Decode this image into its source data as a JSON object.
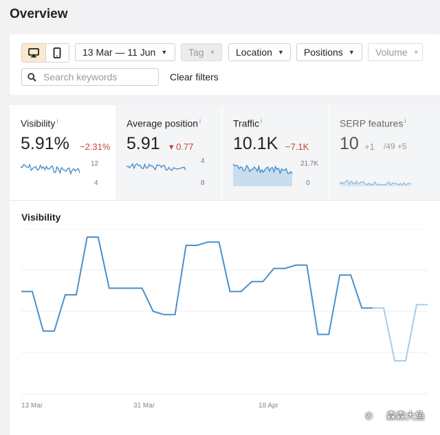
{
  "page": {
    "title": "Overview"
  },
  "filters": {
    "device_desktop_icon": "desktop-icon",
    "device_mobile_icon": "mobile-icon",
    "date_range": "13 Mar — 11 Jun",
    "tag": "Tag",
    "location": "Location",
    "positions": "Positions",
    "volume": "Volume",
    "search_placeholder": "Search keywords",
    "clear_filters": "Clear filters"
  },
  "metrics": [
    {
      "label": "Visibility",
      "info": "i",
      "value": "5.91%",
      "change": "−2.31%",
      "axis_top": "12",
      "axis_bottom": "4"
    },
    {
      "label": "Average position",
      "info": "i",
      "value": "5.91",
      "change": "▾ 0.77",
      "axis_top": "4",
      "axis_bottom": "8"
    },
    {
      "label": "Traffic",
      "info": "i",
      "value": "10.1K",
      "change": "−7.1K",
      "axis_top": "21.7K",
      "axis_bottom": "0"
    },
    {
      "label": "SERP features",
      "info": "i",
      "value": "10",
      "change": "+1",
      "extra": "/49 +5"
    }
  ],
  "chart_title": "Visibility",
  "colors": {
    "accent": "#4a8fc8",
    "negative": "#c44536",
    "active_segment": "#fbe9cf"
  },
  "chart_data": {
    "type": "line",
    "title": "Visibility",
    "x_tick_labels": [
      "13 Mar",
      "31 Mar",
      "18 Apr"
    ],
    "series": [
      {
        "values": [
          0.62,
          0.62,
          0.38,
          0.38,
          0.6,
          0.6,
          0.95,
          0.95,
          0.64,
          0.64,
          0.64,
          0.64,
          0.5,
          0.48,
          0.48,
          0.9,
          0.9,
          0.92,
          0.92,
          0.62,
          0.62,
          0.68,
          0.68,
          0.76,
          0.76,
          0.78,
          0.78,
          0.36,
          0.36,
          0.72,
          0.72,
          0.52,
          0.52,
          0.52,
          0.2,
          0.2,
          0.54,
          0.54
        ]
      }
    ],
    "grid": true
  },
  "watermark": "森森大鱼"
}
